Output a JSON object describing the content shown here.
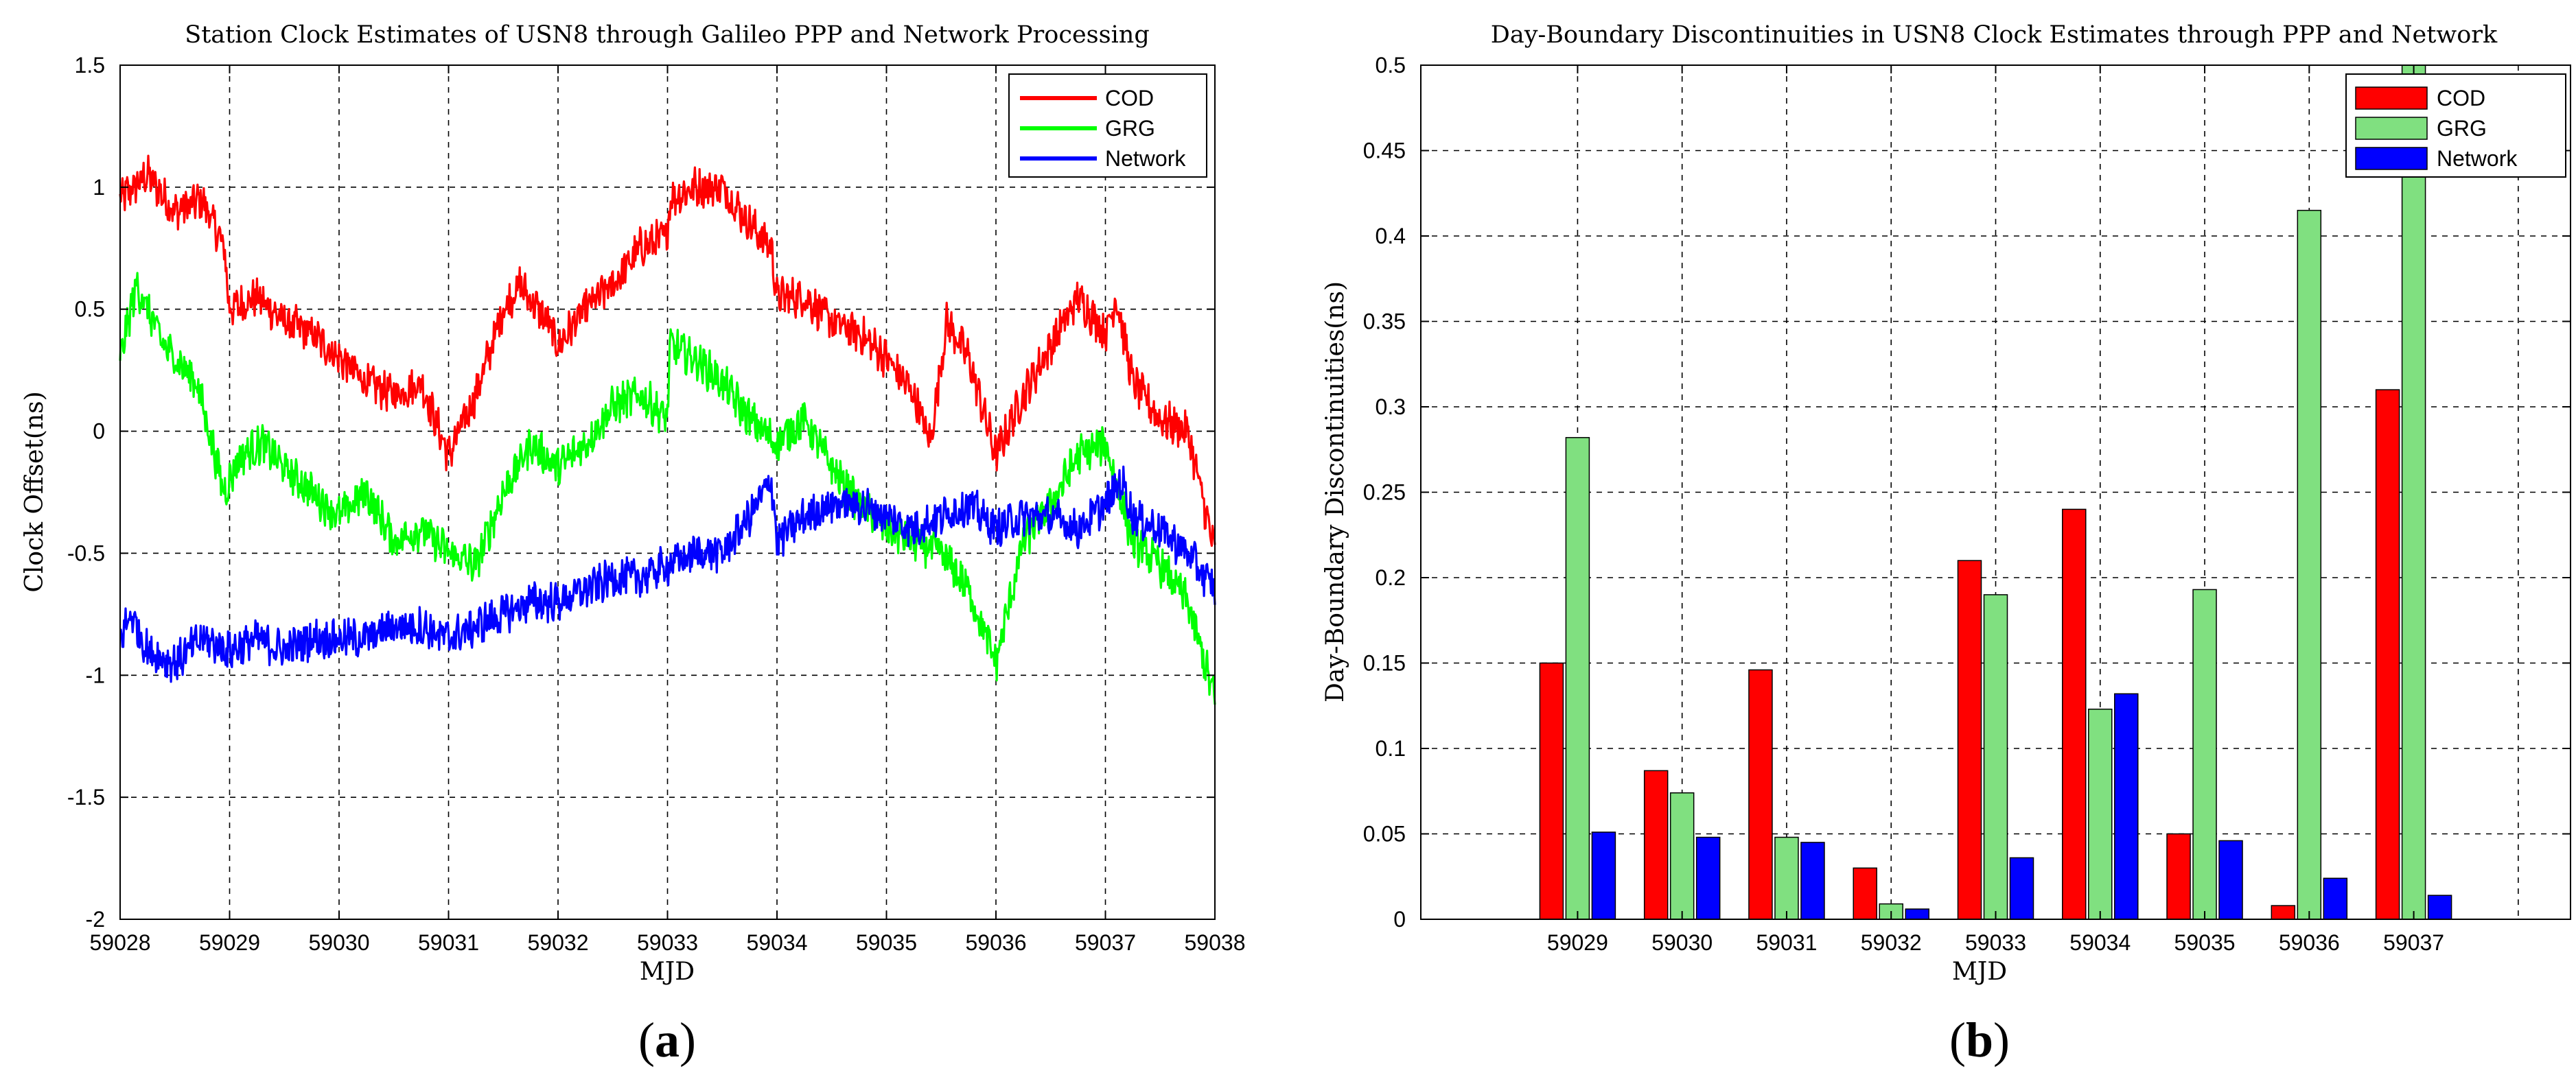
{
  "chart_data": [
    {
      "id": "a",
      "type": "line",
      "panel_label": "a",
      "title": "Station Clock Estimates of USN8 through Galileo PPP and Network Processing",
      "xlabel": "MJD",
      "ylabel": "Clock Offset(ns)",
      "xlim": [
        59028,
        59038
      ],
      "ylim": [
        -2,
        1.5
      ],
      "xticks": [
        59028,
        59029,
        59030,
        59031,
        59032,
        59033,
        59034,
        59035,
        59036,
        59037,
        59038
      ],
      "yticks": [
        -2,
        -1.5,
        -1,
        -0.5,
        0,
        0.5,
        1,
        1.5
      ],
      "ytick_labels": [
        "-2",
        "-1.5",
        "-1",
        "-0.5",
        "0",
        "0.5",
        "1",
        "1.5"
      ],
      "grid": true,
      "legend_position": "top-right",
      "series": [
        {
          "name": "COD",
          "color": "#ff0000",
          "x": [
            59028.0,
            59028.25,
            59028.5,
            59028.75,
            59028.95,
            59029.0,
            59029.25,
            59029.5,
            59029.75,
            59030.0,
            59030.25,
            59030.5,
            59030.75,
            59031.0,
            59031.25,
            59031.5,
            59031.65,
            59031.9,
            59032.0,
            59032.25,
            59032.5,
            59032.75,
            59033.0,
            59033.02,
            59033.25,
            59033.5,
            59033.75,
            59033.95,
            59034.0,
            59034.25,
            59034.5,
            59034.75,
            59035.0,
            59035.25,
            59035.4,
            59035.55,
            59035.75,
            59036.0,
            59036.25,
            59036.5,
            59036.75,
            59037.0,
            59037.1,
            59037.25,
            59037.5,
            59037.75,
            59038.0
          ],
          "y": [
            0.95,
            1.05,
            0.9,
            0.95,
            0.75,
            0.5,
            0.55,
            0.45,
            0.4,
            0.3,
            0.2,
            0.15,
            0.2,
            -0.1,
            0.15,
            0.5,
            0.6,
            0.45,
            0.35,
            0.5,
            0.6,
            0.75,
            0.8,
            0.95,
            1.0,
            1.0,
            0.85,
            0.75,
            0.55,
            0.55,
            0.45,
            0.4,
            0.3,
            0.15,
            -0.05,
            0.45,
            0.3,
            -0.1,
            0.15,
            0.35,
            0.55,
            0.4,
            0.55,
            0.2,
            0.05,
            0.0,
            -0.5
          ]
        },
        {
          "name": "GRG",
          "color": "#00ff00",
          "x": [
            59028.0,
            59028.15,
            59028.4,
            59028.7,
            59028.95,
            59029.1,
            59029.3,
            59029.5,
            59029.75,
            59030.0,
            59030.25,
            59030.5,
            59030.75,
            59031.0,
            59031.25,
            59031.5,
            59031.75,
            59032.0,
            59032.25,
            59032.5,
            59032.75,
            59033.0,
            59033.02,
            59033.25,
            59033.5,
            59033.75,
            59034.0,
            59034.25,
            59034.5,
            59034.75,
            59035.0,
            59035.25,
            59035.5,
            59035.75,
            59036.0,
            59036.25,
            59036.5,
            59036.75,
            59037.0,
            59037.25,
            59037.5,
            59037.75,
            59038.0
          ],
          "y": [
            0.3,
            0.6,
            0.35,
            0.2,
            -0.25,
            -0.1,
            -0.05,
            -0.15,
            -0.25,
            -0.35,
            -0.25,
            -0.45,
            -0.4,
            -0.5,
            -0.55,
            -0.25,
            -0.05,
            -0.15,
            -0.05,
            0.1,
            0.15,
            0.05,
            0.35,
            0.3,
            0.2,
            0.05,
            -0.05,
            0.05,
            -0.15,
            -0.3,
            -0.4,
            -0.45,
            -0.5,
            -0.65,
            -0.95,
            -0.45,
            -0.3,
            -0.1,
            -0.05,
            -0.45,
            -0.55,
            -0.7,
            -1.1
          ]
        },
        {
          "name": "Network",
          "color": "#0000ff",
          "x": [
            59028.0,
            59028.1,
            59028.25,
            59028.5,
            59028.75,
            59029.0,
            59029.25,
            59029.5,
            59029.75,
            59030.0,
            59030.25,
            59030.5,
            59030.75,
            59031.0,
            59031.25,
            59031.5,
            59031.75,
            59032.0,
            59032.25,
            59032.5,
            59032.75,
            59033.0,
            59033.25,
            59033.5,
            59033.75,
            59033.95,
            59034.0,
            59034.25,
            59034.5,
            59034.75,
            59035.0,
            59035.25,
            59035.5,
            59035.75,
            59036.0,
            59036.25,
            59036.5,
            59036.75,
            59037.0,
            59037.15,
            59037.25,
            59037.5,
            59037.75,
            59038.0
          ],
          "y": [
            -0.85,
            -0.75,
            -0.9,
            -0.95,
            -0.85,
            -0.9,
            -0.85,
            -0.9,
            -0.85,
            -0.85,
            -0.85,
            -0.8,
            -0.8,
            -0.85,
            -0.8,
            -0.75,
            -0.7,
            -0.7,
            -0.65,
            -0.6,
            -0.6,
            -0.55,
            -0.5,
            -0.5,
            -0.35,
            -0.2,
            -0.45,
            -0.35,
            -0.3,
            -0.3,
            -0.35,
            -0.4,
            -0.35,
            -0.3,
            -0.4,
            -0.35,
            -0.35,
            -0.4,
            -0.3,
            -0.2,
            -0.35,
            -0.4,
            -0.5,
            -0.65
          ]
        }
      ]
    },
    {
      "id": "b",
      "type": "bar",
      "panel_label": "b",
      "title": "Day-Boundary Discontinuities in USN8 Clock Estimates through PPP and Network",
      "xlabel": "MJD",
      "ylabel": "Day-Boundary Discontinuities(ns)",
      "categories": [
        "59029",
        "59030",
        "59031",
        "59032",
        "59033",
        "59034",
        "59035",
        "59036",
        "59037"
      ],
      "ylim": [
        0,
        0.5
      ],
      "yticks": [
        0,
        0.05,
        0.1,
        0.15,
        0.2,
        0.25,
        0.3,
        0.35,
        0.4,
        0.45,
        0.5
      ],
      "ytick_labels": [
        "0",
        "0.05",
        "0.1",
        "0.15",
        "0.2",
        "0.25",
        "0.3",
        "0.35",
        "0.4",
        "0.45",
        "0.5"
      ],
      "grid": true,
      "legend_position": "top-right",
      "series": [
        {
          "name": "COD",
          "color": "#ff0000",
          "values": [
            0.15,
            0.087,
            0.146,
            0.03,
            0.21,
            0.24,
            0.05,
            0.008,
            0.31
          ]
        },
        {
          "name": "GRG",
          "color": "#80e080",
          "values": [
            0.282,
            0.074,
            0.048,
            0.009,
            0.19,
            0.123,
            0.193,
            0.415,
            0.5
          ]
        },
        {
          "name": "Network",
          "color": "#0000ff",
          "values": [
            0.051,
            0.048,
            0.045,
            0.006,
            0.036,
            0.132,
            0.046,
            0.024,
            0.014
          ]
        }
      ]
    }
  ]
}
